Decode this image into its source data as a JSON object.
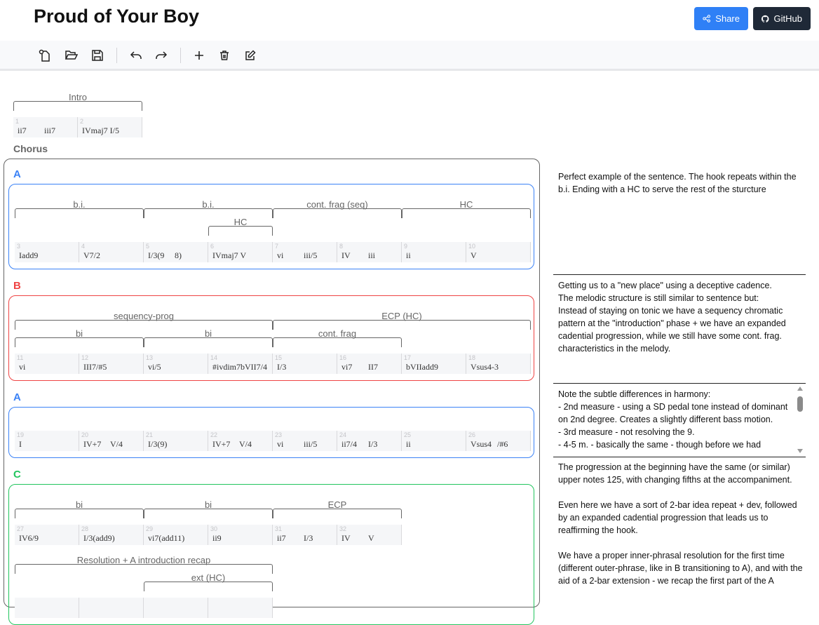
{
  "header": {
    "title": "Proud of Your Boy",
    "share_label": "Share",
    "github_label": "GitHub",
    "share_color": "#2f80f6",
    "github_color": "#1f2937"
  },
  "toolbar": {
    "icons": [
      "new-file-icon",
      "open-folder-icon",
      "save-icon",
      "undo-icon",
      "redo-icon",
      "add-icon",
      "trash-icon",
      "edit-icon"
    ]
  },
  "sections": [
    {
      "name": "Intro",
      "phrases": [
        {
          "label": "",
          "color": "",
          "lines": [
            {
              "brackets": [
                {
                  "label": "Intro",
                  "row": 0,
                  "start": 0,
                  "span": 2
                }
              ],
              "measures": [
                {
                  "n": "1",
                  "chords": [
                    "ii7",
                    "iii7"
                  ]
                },
                {
                  "n": "2",
                  "chords": [
                    "IVmaj7 I/5"
                  ]
                }
              ]
            }
          ]
        }
      ]
    },
    {
      "name": "Chorus",
      "phrases": [
        {
          "label": "A",
          "color": "#3b82f6",
          "lines": [
            {
              "brackets": [
                {
                  "label": "b.i.",
                  "row": 0,
                  "start": 0,
                  "span": 2
                },
                {
                  "label": "b.i.",
                  "row": 0,
                  "start": 2,
                  "span": 2
                },
                {
                  "label": "cont. frag (seq)",
                  "row": 0,
                  "start": 4,
                  "span": 2
                },
                {
                  "label": "HC",
                  "row": 0,
                  "start": 6,
                  "span": 2
                },
                {
                  "label": "HC",
                  "row": 1,
                  "start": 3,
                  "span": 1
                }
              ],
              "measures": [
                {
                  "n": "3",
                  "chords": [
                    "Iadd9"
                  ]
                },
                {
                  "n": "4",
                  "chords": [
                    "V7/2"
                  ]
                },
                {
                  "n": "5",
                  "chords": [
                    "I/3(9",
                    "8)"
                  ]
                },
                {
                  "n": "6",
                  "chords": [
                    "IVmaj7 V"
                  ]
                },
                {
                  "n": "7",
                  "chords": [
                    "vi",
                    "iii/5"
                  ]
                },
                {
                  "n": "8",
                  "chords": [
                    "IV",
                    "iii"
                  ]
                },
                {
                  "n": "9",
                  "chords": [
                    "ii"
                  ]
                },
                {
                  "n": "10",
                  "chords": [
                    "V"
                  ]
                }
              ]
            }
          ]
        },
        {
          "label": "B",
          "color": "#ef4444",
          "lines": [
            {
              "brackets": [
                {
                  "label": "sequency-prog",
                  "row": 0,
                  "start": 0,
                  "span": 4
                },
                {
                  "label": "ECP (HC)",
                  "row": 0,
                  "start": 4,
                  "span": 4
                },
                {
                  "label": "bi",
                  "row": 1,
                  "start": 0,
                  "span": 2
                },
                {
                  "label": "bi",
                  "row": 1,
                  "start": 2,
                  "span": 2
                },
                {
                  "label": "cont. frag",
                  "row": 1,
                  "start": 4,
                  "span": 2
                }
              ],
              "measures": [
                {
                  "n": "11",
                  "chords": [
                    "vi"
                  ]
                },
                {
                  "n": "12",
                  "chords": [
                    "III7/#5"
                  ]
                },
                {
                  "n": "13",
                  "chords": [
                    "vi/5"
                  ]
                },
                {
                  "n": "14",
                  "chords": [
                    "#ivdim7bVII7/4"
                  ]
                },
                {
                  "n": "15",
                  "chords": [
                    "I/3"
                  ]
                },
                {
                  "n": "16",
                  "chords": [
                    "vi7",
                    "II7"
                  ]
                },
                {
                  "n": "17",
                  "chords": [
                    "bVIIadd9"
                  ]
                },
                {
                  "n": "18",
                  "chords": [
                    "Vsus4-3"
                  ]
                }
              ]
            }
          ]
        },
        {
          "label": "A",
          "color": "#3b82f6",
          "lines": [
            {
              "brackets": [],
              "measures": [
                {
                  "n": "19",
                  "chords": [
                    "I"
                  ]
                },
                {
                  "n": "20",
                  "chords": [
                    "IV+7",
                    "V/4"
                  ]
                },
                {
                  "n": "21",
                  "chords": [
                    "I/3(9)"
                  ]
                },
                {
                  "n": "22",
                  "chords": [
                    "IV+7",
                    "V/4"
                  ]
                },
                {
                  "n": "23",
                  "chords": [
                    "vi",
                    "iii/5"
                  ]
                },
                {
                  "n": "24",
                  "chords": [
                    "ii7/4",
                    "I/3"
                  ]
                },
                {
                  "n": "25",
                  "chords": [
                    "ii"
                  ]
                },
                {
                  "n": "26",
                  "chords": [
                    "Vsus4",
                    "/#6"
                  ]
                }
              ]
            }
          ]
        },
        {
          "label": "C",
          "color": "#22c55e",
          "lines": [
            {
              "brackets": [
                {
                  "label": "bi",
                  "row": 0,
                  "start": 0,
                  "span": 2
                },
                {
                  "label": "bi",
                  "row": 0,
                  "start": 2,
                  "span": 2
                },
                {
                  "label": "ECP",
                  "row": 0,
                  "start": 4,
                  "span": 2
                }
              ],
              "measures": [
                {
                  "n": "27",
                  "chords": [
                    "IV6/9"
                  ]
                },
                {
                  "n": "28",
                  "chords": [
                    "I/3(add9)"
                  ]
                },
                {
                  "n": "29",
                  "chords": [
                    "vi7(add11)"
                  ]
                },
                {
                  "n": "30",
                  "chords": [
                    "ii9"
                  ]
                },
                {
                  "n": "31",
                  "chords": [
                    "ii7",
                    "I/3"
                  ]
                },
                {
                  "n": "32",
                  "chords": [
                    "IV",
                    "V"
                  ]
                }
              ]
            },
            {
              "brackets": [
                {
                  "label": "Resolution + A introduction recap",
                  "row": 0,
                  "start": 0,
                  "span": 4
                },
                {
                  "label": "ext (HC)",
                  "row": 1,
                  "start": 2,
                  "span": 2
                }
              ],
              "measures": [
                {
                  "n": "",
                  "chords": []
                },
                {
                  "n": "",
                  "chords": []
                },
                {
                  "n": "",
                  "chords": []
                },
                {
                  "n": "",
                  "chords": []
                }
              ]
            }
          ]
        }
      ]
    }
  ],
  "notes": [
    "Perfect example of the sentence. The hook repeats within the b.i. Ending with a HC to serve the rest of the sturcture",
    "Getting us to a \"new place\" using a deceptive cadence.\nThe melodic structure is still similar to sentence but:\nInstead of staying on tonic we have a sequency chromatic pattern at the \"introduction\" phase + we have an expanded cadential progression, while we still have some cont. frag. characteristics in the melody.",
    "Note the subtle differences in harmony:\n- 2nd measure - using a SD pedal tone instead of dominant on 2nd degree. Creates a slightly different bass motion.\n- 3rd measure - not resolving the 9.\n- 4-5 m. - basically the same - though before we had",
    "The progression at the beginning have the same (or similar) upper notes 125, with changing fifths at the accompaniment.\n\nEven here we have a sort of 2-bar idea repeat + dev, followed by an expanded cadential progression that leads us to reaffirming the hook.\n\nWe have a proper inner-phrasal resolution for the first time (different outer-phrase, like in B transitioning to A), and with the aid of a 2-bar extension - we recap the first part of the A"
  ]
}
